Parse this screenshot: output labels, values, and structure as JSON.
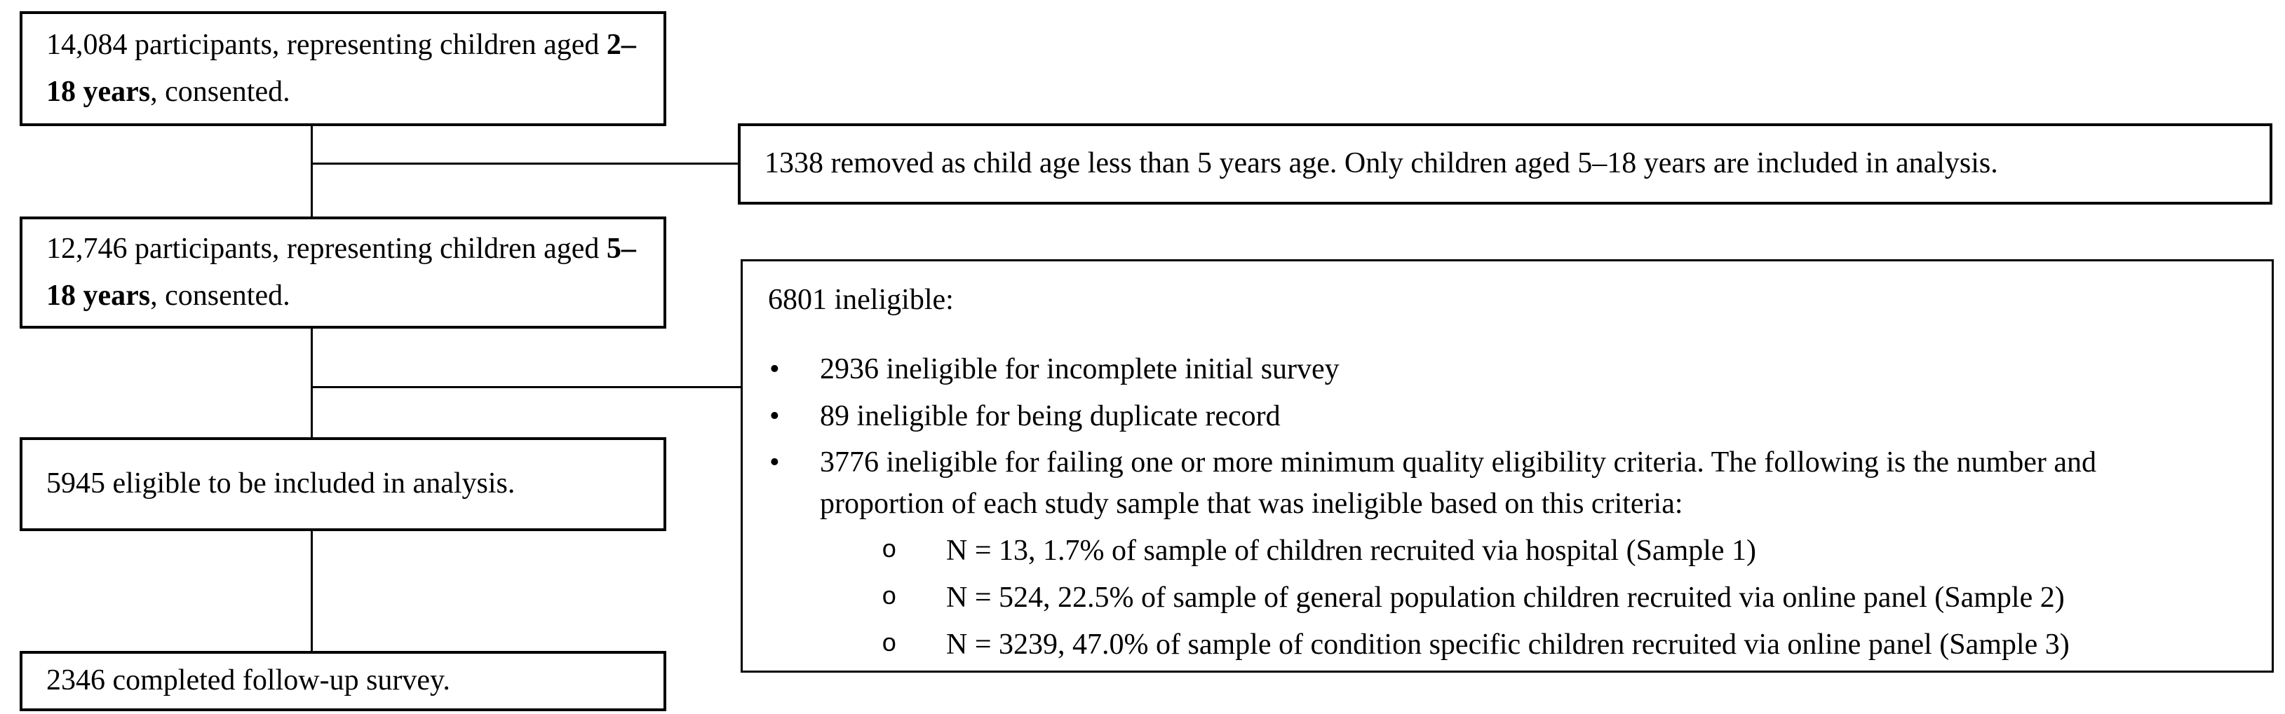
{
  "flow": {
    "main_boxes": [
      {
        "pre": "14,084 participants, representing children aged ",
        "bold": "2–18 years",
        "post": ", consented."
      },
      {
        "pre": "12,746 participants, representing children aged ",
        "bold": "5–18 years",
        "post": ", consented."
      },
      {
        "text": "5945 eligible to be included in analysis."
      },
      {
        "text": "2346 completed follow-up survey."
      }
    ],
    "exclusion_boxes": {
      "age_removed": {
        "text": "1338 removed as child age less than 5 years age. Only children aged 5–18 years are included in analysis."
      },
      "ineligible": {
        "title": "6801 ineligible:",
        "bullet_char": "•",
        "sub_bullet_char": "o",
        "bullets": [
          {
            "text": "2936 ineligible for incomplete initial survey"
          },
          {
            "text": "89 ineligible for being duplicate record"
          },
          {
            "text": "3776 ineligible for failing one or more minimum quality eligibility criteria. The following is the number and proportion of each study sample that was ineligible based on this criteria:"
          }
        ],
        "sub_bullets": [
          {
            "text": "N = 13, 1.7% of sample of children recruited via hospital (Sample 1)"
          },
          {
            "text": "N = 524, 22.5% of sample of general population children recruited via online panel (Sample 2)"
          },
          {
            "text": "N = 3239, 47.0% of sample of condition specific children recruited via online panel (Sample 3)"
          }
        ]
      }
    },
    "colors": {
      "background": "#ffffff",
      "line": "#000000",
      "text": "#000000"
    }
  }
}
